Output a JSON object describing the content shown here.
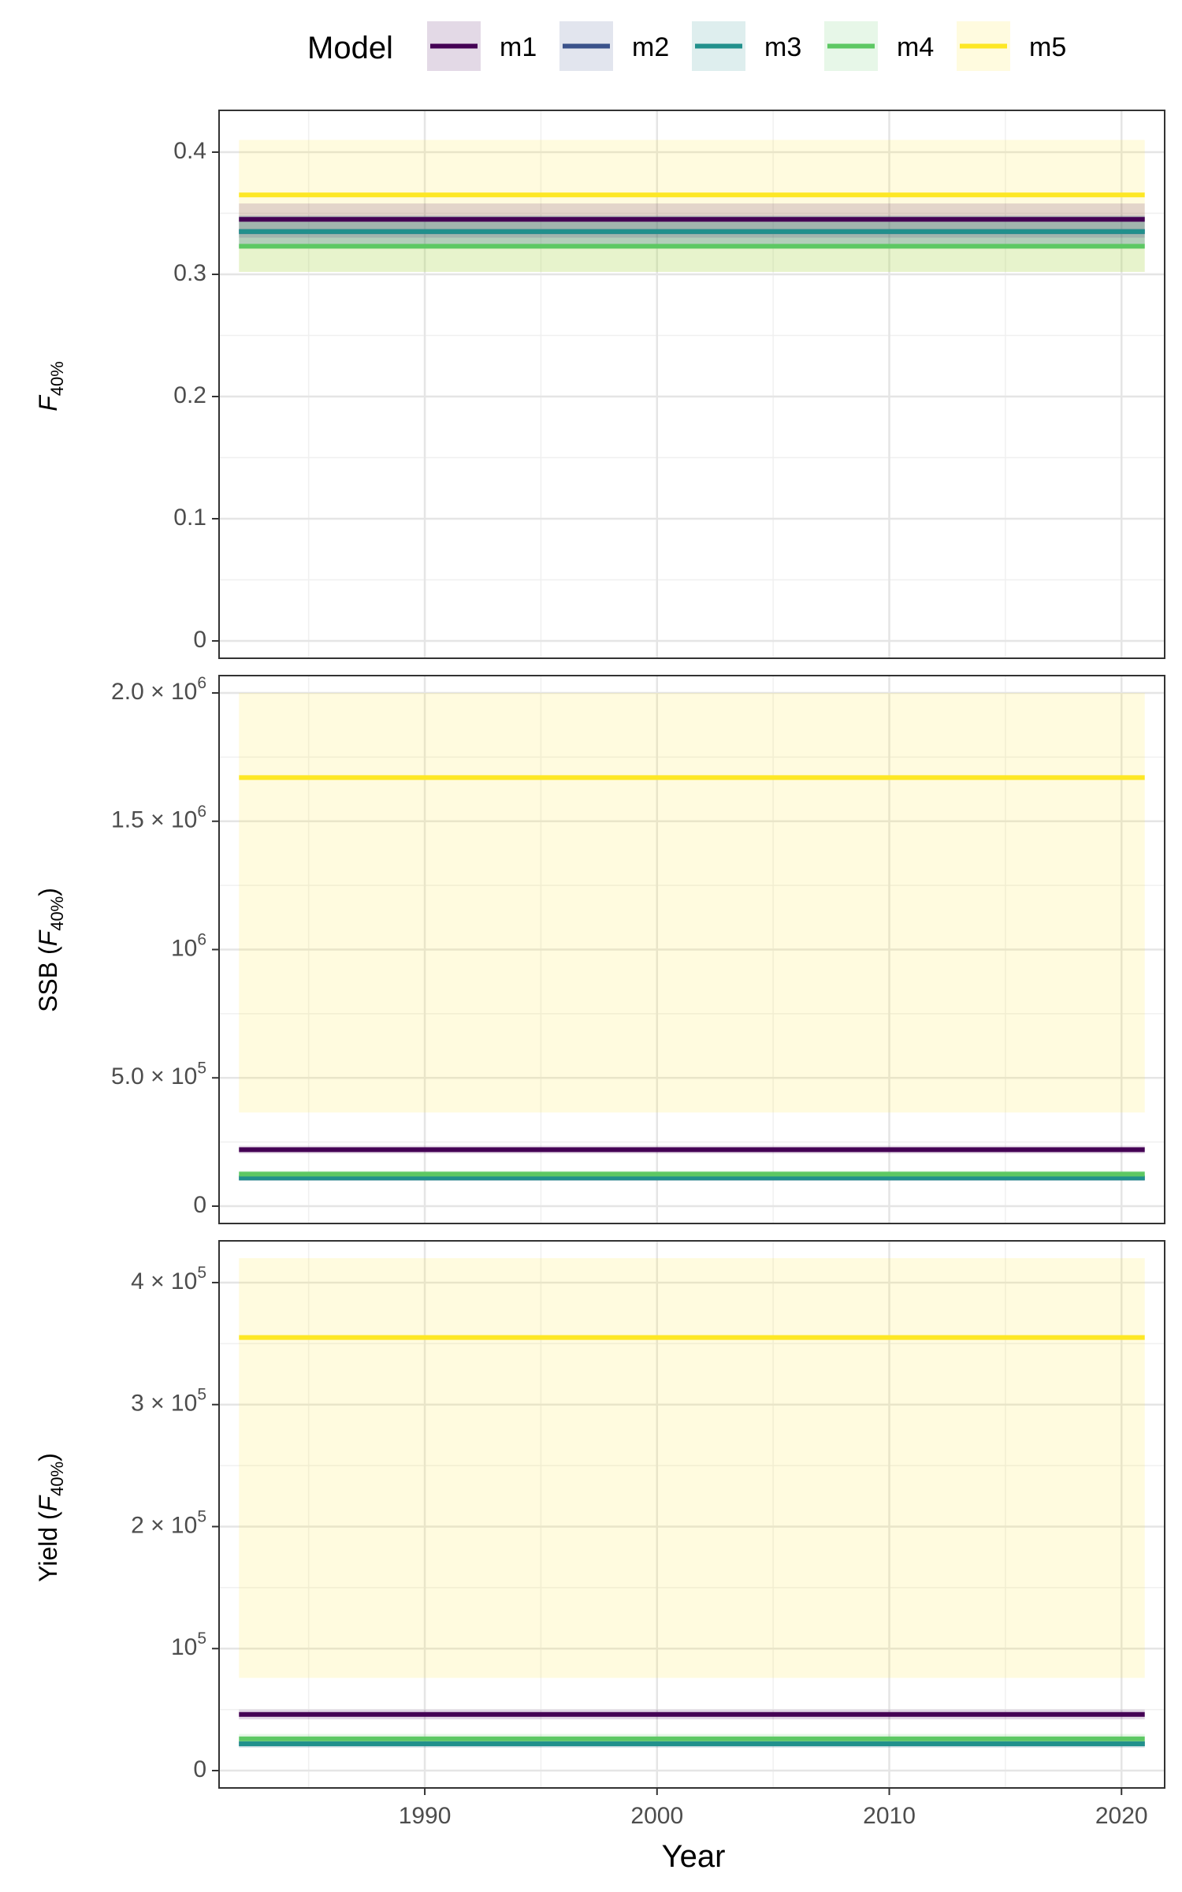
{
  "legend": {
    "title": "Model",
    "position": "top"
  },
  "x_axis": {
    "title": "Year",
    "range": [
      1982,
      2021
    ],
    "ticks": [
      1990,
      2000,
      2010,
      2020
    ]
  },
  "colors": {
    "m1": "#440154",
    "m2": "#3B528B",
    "m3": "#21908C",
    "m4": "#5DC863",
    "m5": "#FDE725"
  },
  "chart_data": {
    "type": "line",
    "grid": true,
    "series_names": [
      "m1",
      "m2",
      "m3",
      "m4",
      "m5"
    ],
    "x": [
      1982,
      2021
    ],
    "panels": [
      {
        "id": "f40",
        "ylabel": "F40%",
        "ylim": [
          0,
          0.42
        ],
        "ticks": [
          {
            "v": 0,
            "label": "0"
          },
          {
            "v": 0.1,
            "label": "0.1"
          },
          {
            "v": 0.2,
            "label": "0.2"
          },
          {
            "v": 0.3,
            "label": "0.3"
          },
          {
            "v": 0.4,
            "label": "0.4"
          }
        ],
        "series": [
          {
            "name": "m1",
            "value": 0.345,
            "lower": 0.33,
            "upper": 0.358
          },
          {
            "name": "m2",
            "value": 0.335,
            "lower": 0.322,
            "upper": 0.348
          },
          {
            "name": "m3",
            "value": 0.335,
            "lower": 0.322,
            "upper": 0.348
          },
          {
            "name": "m4",
            "value": 0.323,
            "lower": 0.302,
            "upper": 0.343
          },
          {
            "name": "m5",
            "value": 0.365,
            "lower": 0.302,
            "upper": 0.41
          }
        ]
      },
      {
        "id": "ssb",
        "ylabel": "SSB (F40%)",
        "ylim": [
          0,
          2000000
        ],
        "ticks": [
          {
            "v": 0,
            "label": "0"
          },
          {
            "v": 500000,
            "label": "5.0 × 10^5"
          },
          {
            "v": 1000000,
            "label": "10^6"
          },
          {
            "v": 1500000,
            "label": "1.5 × 10^6"
          },
          {
            "v": 2000000,
            "label": "2.0 × 10^6"
          }
        ],
        "series": [
          {
            "name": "m1",
            "value": 220000,
            "lower": 205000,
            "upper": 235000
          },
          {
            "name": "m2",
            "value": 110000,
            "lower": 100000,
            "upper": 120000
          },
          {
            "name": "m3",
            "value": 110000,
            "lower": 100000,
            "upper": 120000
          },
          {
            "name": "m4",
            "value": 125000,
            "lower": 112000,
            "upper": 138000
          },
          {
            "name": "m5",
            "value": 1670000,
            "lower": 365000,
            "upper": 2000000
          }
        ]
      },
      {
        "id": "yield",
        "ylabel": "Yield (F40%)",
        "ylim": [
          0,
          420000
        ],
        "ticks": [
          {
            "v": 0,
            "label": "0"
          },
          {
            "v": 100000,
            "label": "10^5"
          },
          {
            "v": 200000,
            "label": "2 × 10^5"
          },
          {
            "v": 300000,
            "label": "3 × 10^5"
          },
          {
            "v": 400000,
            "label": "4 × 10^5"
          }
        ],
        "series": [
          {
            "name": "m1",
            "value": 46000,
            "lower": 42000,
            "upper": 50000
          },
          {
            "name": "m2",
            "value": 22000,
            "lower": 19000,
            "upper": 25000
          },
          {
            "name": "m3",
            "value": 22000,
            "lower": 19000,
            "upper": 25000
          },
          {
            "name": "m4",
            "value": 26000,
            "lower": 22000,
            "upper": 30000
          },
          {
            "name": "m5",
            "value": 355000,
            "lower": 76000,
            "upper": 420000
          }
        ]
      }
    ]
  }
}
